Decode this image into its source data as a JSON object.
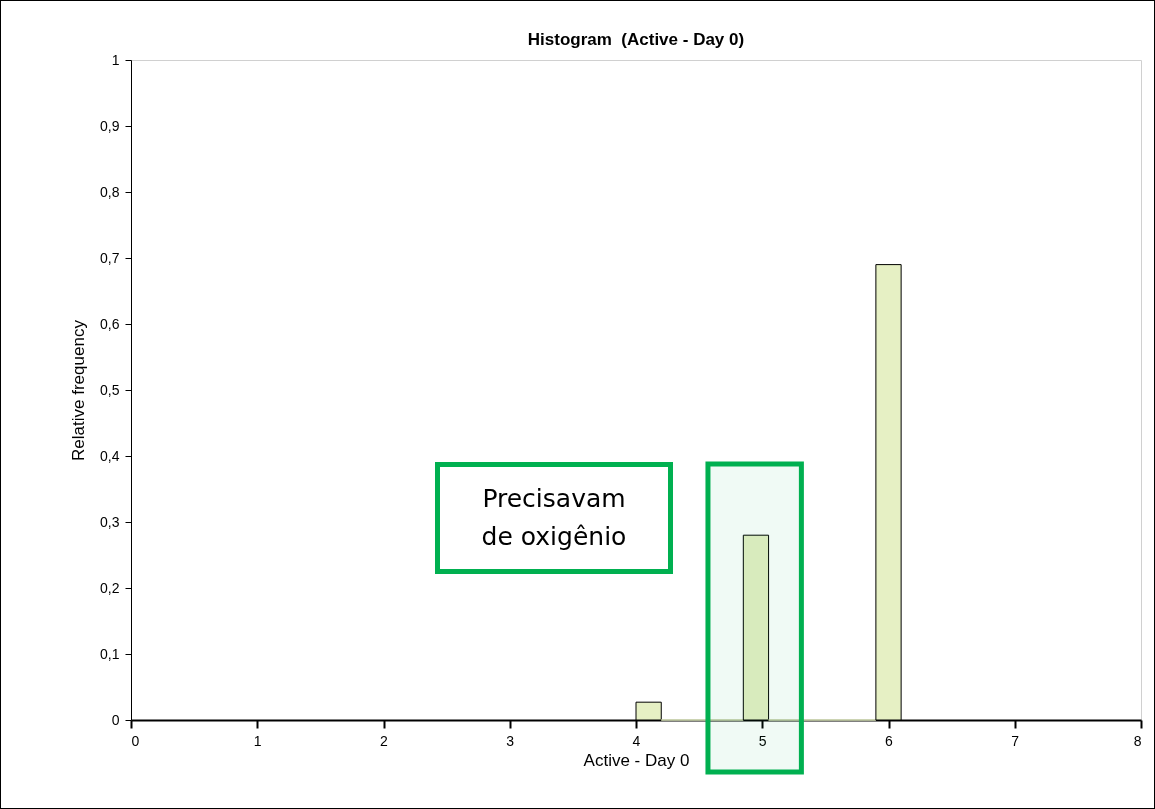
{
  "chart_data": {
    "type": "histogram",
    "title": "Histogram  (Active - Day 0)",
    "xlabel": "Active - Day 0",
    "ylabel": "Relative frequency",
    "bins": [
      4,
      4.2,
      4.85,
      5.05,
      5.9,
      6.1
    ],
    "values": [
      0.027,
      0,
      0.28,
      0,
      0.69
    ],
    "color": "#e6f0c4",
    "xlim": [
      0,
      8
    ],
    "xticks": [
      0,
      1,
      2,
      3,
      4,
      5,
      6,
      7,
      8
    ],
    "ylim": [
      0,
      1
    ],
    "yticks": [
      0,
      {
        "value": 0.1,
        "label": "0,1"
      },
      {
        "value": 0.2,
        "label": "0,2"
      },
      {
        "value": 0.3,
        "label": "0,3"
      },
      {
        "value": 0.4,
        "label": "0,4"
      },
      {
        "value": 0.5,
        "label": "0,5"
      },
      {
        "value": 0.6,
        "label": "0,6"
      },
      {
        "value": 0.7,
        "label": "0,7"
      },
      {
        "value": 0.8,
        "label": "0,8"
      },
      {
        "value": 0.9,
        "label": "0,9"
      },
      1
    ],
    "annotations": [
      "Precisavam de oxigênio"
    ],
    "bands": [
      {
        "axis": "x",
        "from": 4.57,
        "to": 5.31,
        "color": "#00b050"
      }
    ],
    "grid": false
  }
}
